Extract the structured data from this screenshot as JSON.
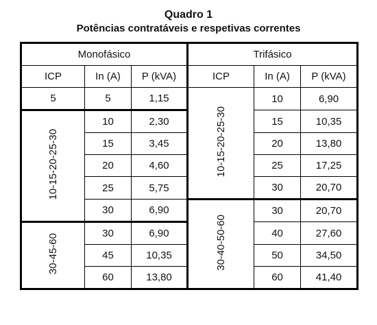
{
  "title": "Quadro 1",
  "subtitle": "Potências contratáveis e respetivas correntes",
  "groups": {
    "mono": "Monofásico",
    "tri": "Trifásico"
  },
  "columns": {
    "icp": "ICP",
    "in": "In (A)",
    "p": "P (kVA)"
  },
  "mono": {
    "icp_groups": [
      "5",
      "10-15-20-25-30",
      "30-45-60"
    ],
    "rows": [
      {
        "in": "5",
        "p": "1,15"
      },
      {
        "in": "10",
        "p": "2,30"
      },
      {
        "in": "15",
        "p": "3,45"
      },
      {
        "in": "20",
        "p": "4,60"
      },
      {
        "in": "25",
        "p": "5,75"
      },
      {
        "in": "30",
        "p": "6,90"
      },
      {
        "in": "30",
        "p": "6,90"
      },
      {
        "in": "45",
        "p": "10,35"
      },
      {
        "in": "60",
        "p": "13,80"
      }
    ]
  },
  "tri": {
    "icp_groups": [
      "10-15-20-25-30",
      "30-40-50-60"
    ],
    "rows": [
      {
        "in": "10",
        "p": "6,90"
      },
      {
        "in": "15",
        "p": "10,35"
      },
      {
        "in": "20",
        "p": "13,80"
      },
      {
        "in": "25",
        "p": "17,25"
      },
      {
        "in": "30",
        "p": "20,70"
      },
      {
        "in": "30",
        "p": "20,70"
      },
      {
        "in": "40",
        "p": "27,60"
      },
      {
        "in": "50",
        "p": "34,50"
      },
      {
        "in": "60",
        "p": "41,40"
      }
    ]
  }
}
